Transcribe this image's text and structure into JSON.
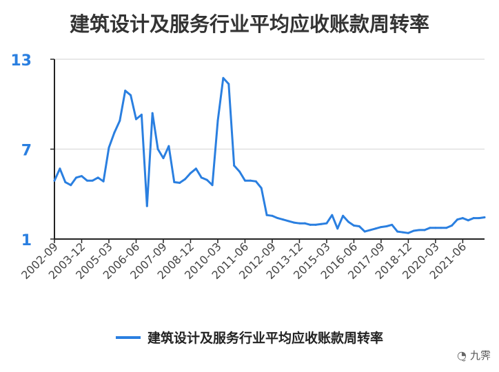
{
  "chart_data": {
    "type": "line",
    "title": "建筑设计及服务行业平均应收账款周转率",
    "xlabel": "",
    "ylabel": "",
    "ylim": [
      1,
      13
    ],
    "yticks": [
      "13",
      "7",
      "1"
    ],
    "xticks": [
      "2002-09",
      "2003-12",
      "2005-03",
      "2006-06",
      "2007-09",
      "2008-12",
      "2010-03",
      "2011-06",
      "2012-09",
      "2013-12",
      "2015-03",
      "2016-06",
      "2017-09",
      "2018-12",
      "2020-03",
      "2021-06"
    ],
    "grid": true,
    "legend_position": "bottom",
    "colors": {
      "series": "#2a7fe0",
      "tick_label": "#2a7fe0",
      "grid": "#e0e0e0",
      "axis": "#222222"
    },
    "series": [
      {
        "name": "建筑设计及服务行业平均应收账款周转率",
        "values": [
          4.9,
          5.7,
          4.8,
          4.6,
          5.1,
          5.2,
          4.9,
          4.9,
          5.1,
          4.85,
          7.1,
          8.1,
          8.9,
          10.9,
          10.6,
          9.0,
          9.3,
          3.2,
          9.4,
          7.0,
          6.4,
          7.2,
          4.8,
          4.75,
          5.0,
          5.4,
          5.7,
          5.1,
          4.95,
          4.6,
          8.9,
          11.75,
          11.35,
          5.9,
          5.5,
          4.9,
          4.9,
          4.85,
          4.4,
          2.6,
          2.55,
          2.4,
          2.3,
          2.2,
          2.1,
          2.05,
          2.05,
          1.95,
          1.95,
          2.0,
          2.05,
          2.6,
          1.7,
          2.55,
          2.15,
          1.9,
          1.85,
          1.5,
          1.6,
          1.7,
          1.8,
          1.85,
          1.95,
          1.5,
          1.45,
          1.4,
          1.55,
          1.6,
          1.6,
          1.75,
          1.75,
          1.75,
          1.75,
          1.9,
          2.3,
          2.4,
          2.25,
          2.4,
          2.4,
          2.45
        ]
      }
    ]
  },
  "watermark": {
    "icon": "wechat-icon",
    "text": "九霁"
  }
}
